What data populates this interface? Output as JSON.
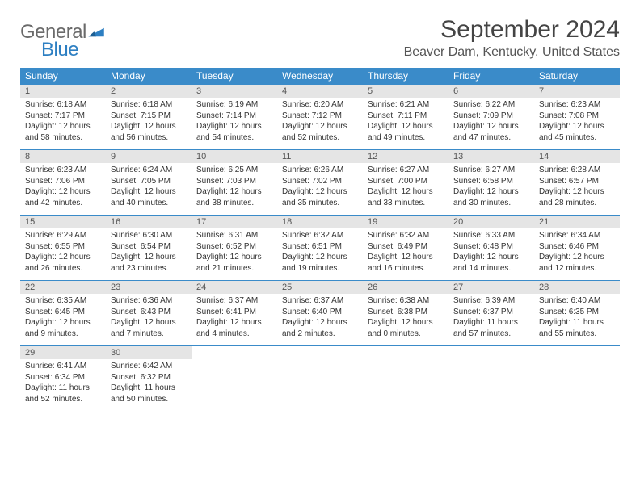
{
  "logo": {
    "general": "General",
    "blue": "Blue"
  },
  "title": "September 2024",
  "location": "Beaver Dam, Kentucky, United States",
  "colors": {
    "header_bg": "#3a8bc9",
    "header_text": "#ffffff",
    "daynum_bg": "#e5e5e5",
    "border": "#3a8bc9",
    "logo_general": "#6a6a6a",
    "logo_blue": "#2d7fc2"
  },
  "weekdays": [
    "Sunday",
    "Monday",
    "Tuesday",
    "Wednesday",
    "Thursday",
    "Friday",
    "Saturday"
  ],
  "weeks": [
    [
      {
        "n": "1",
        "sunrise": "Sunrise: 6:18 AM",
        "sunset": "Sunset: 7:17 PM",
        "daylight": "Daylight: 12 hours and 58 minutes."
      },
      {
        "n": "2",
        "sunrise": "Sunrise: 6:18 AM",
        "sunset": "Sunset: 7:15 PM",
        "daylight": "Daylight: 12 hours and 56 minutes."
      },
      {
        "n": "3",
        "sunrise": "Sunrise: 6:19 AM",
        "sunset": "Sunset: 7:14 PM",
        "daylight": "Daylight: 12 hours and 54 minutes."
      },
      {
        "n": "4",
        "sunrise": "Sunrise: 6:20 AM",
        "sunset": "Sunset: 7:12 PM",
        "daylight": "Daylight: 12 hours and 52 minutes."
      },
      {
        "n": "5",
        "sunrise": "Sunrise: 6:21 AM",
        "sunset": "Sunset: 7:11 PM",
        "daylight": "Daylight: 12 hours and 49 minutes."
      },
      {
        "n": "6",
        "sunrise": "Sunrise: 6:22 AM",
        "sunset": "Sunset: 7:09 PM",
        "daylight": "Daylight: 12 hours and 47 minutes."
      },
      {
        "n": "7",
        "sunrise": "Sunrise: 6:23 AM",
        "sunset": "Sunset: 7:08 PM",
        "daylight": "Daylight: 12 hours and 45 minutes."
      }
    ],
    [
      {
        "n": "8",
        "sunrise": "Sunrise: 6:23 AM",
        "sunset": "Sunset: 7:06 PM",
        "daylight": "Daylight: 12 hours and 42 minutes."
      },
      {
        "n": "9",
        "sunrise": "Sunrise: 6:24 AM",
        "sunset": "Sunset: 7:05 PM",
        "daylight": "Daylight: 12 hours and 40 minutes."
      },
      {
        "n": "10",
        "sunrise": "Sunrise: 6:25 AM",
        "sunset": "Sunset: 7:03 PM",
        "daylight": "Daylight: 12 hours and 38 minutes."
      },
      {
        "n": "11",
        "sunrise": "Sunrise: 6:26 AM",
        "sunset": "Sunset: 7:02 PM",
        "daylight": "Daylight: 12 hours and 35 minutes."
      },
      {
        "n": "12",
        "sunrise": "Sunrise: 6:27 AM",
        "sunset": "Sunset: 7:00 PM",
        "daylight": "Daylight: 12 hours and 33 minutes."
      },
      {
        "n": "13",
        "sunrise": "Sunrise: 6:27 AM",
        "sunset": "Sunset: 6:58 PM",
        "daylight": "Daylight: 12 hours and 30 minutes."
      },
      {
        "n": "14",
        "sunrise": "Sunrise: 6:28 AM",
        "sunset": "Sunset: 6:57 PM",
        "daylight": "Daylight: 12 hours and 28 minutes."
      }
    ],
    [
      {
        "n": "15",
        "sunrise": "Sunrise: 6:29 AM",
        "sunset": "Sunset: 6:55 PM",
        "daylight": "Daylight: 12 hours and 26 minutes."
      },
      {
        "n": "16",
        "sunrise": "Sunrise: 6:30 AM",
        "sunset": "Sunset: 6:54 PM",
        "daylight": "Daylight: 12 hours and 23 minutes."
      },
      {
        "n": "17",
        "sunrise": "Sunrise: 6:31 AM",
        "sunset": "Sunset: 6:52 PM",
        "daylight": "Daylight: 12 hours and 21 minutes."
      },
      {
        "n": "18",
        "sunrise": "Sunrise: 6:32 AM",
        "sunset": "Sunset: 6:51 PM",
        "daylight": "Daylight: 12 hours and 19 minutes."
      },
      {
        "n": "19",
        "sunrise": "Sunrise: 6:32 AM",
        "sunset": "Sunset: 6:49 PM",
        "daylight": "Daylight: 12 hours and 16 minutes."
      },
      {
        "n": "20",
        "sunrise": "Sunrise: 6:33 AM",
        "sunset": "Sunset: 6:48 PM",
        "daylight": "Daylight: 12 hours and 14 minutes."
      },
      {
        "n": "21",
        "sunrise": "Sunrise: 6:34 AM",
        "sunset": "Sunset: 6:46 PM",
        "daylight": "Daylight: 12 hours and 12 minutes."
      }
    ],
    [
      {
        "n": "22",
        "sunrise": "Sunrise: 6:35 AM",
        "sunset": "Sunset: 6:45 PM",
        "daylight": "Daylight: 12 hours and 9 minutes."
      },
      {
        "n": "23",
        "sunrise": "Sunrise: 6:36 AM",
        "sunset": "Sunset: 6:43 PM",
        "daylight": "Daylight: 12 hours and 7 minutes."
      },
      {
        "n": "24",
        "sunrise": "Sunrise: 6:37 AM",
        "sunset": "Sunset: 6:41 PM",
        "daylight": "Daylight: 12 hours and 4 minutes."
      },
      {
        "n": "25",
        "sunrise": "Sunrise: 6:37 AM",
        "sunset": "Sunset: 6:40 PM",
        "daylight": "Daylight: 12 hours and 2 minutes."
      },
      {
        "n": "26",
        "sunrise": "Sunrise: 6:38 AM",
        "sunset": "Sunset: 6:38 PM",
        "daylight": "Daylight: 12 hours and 0 minutes."
      },
      {
        "n": "27",
        "sunrise": "Sunrise: 6:39 AM",
        "sunset": "Sunset: 6:37 PM",
        "daylight": "Daylight: 11 hours and 57 minutes."
      },
      {
        "n": "28",
        "sunrise": "Sunrise: 6:40 AM",
        "sunset": "Sunset: 6:35 PM",
        "daylight": "Daylight: 11 hours and 55 minutes."
      }
    ],
    [
      {
        "n": "29",
        "sunrise": "Sunrise: 6:41 AM",
        "sunset": "Sunset: 6:34 PM",
        "daylight": "Daylight: 11 hours and 52 minutes."
      },
      {
        "n": "30",
        "sunrise": "Sunrise: 6:42 AM",
        "sunset": "Sunset: 6:32 PM",
        "daylight": "Daylight: 11 hours and 50 minutes."
      },
      {
        "empty": true
      },
      {
        "empty": true
      },
      {
        "empty": true
      },
      {
        "empty": true
      },
      {
        "empty": true
      }
    ]
  ]
}
